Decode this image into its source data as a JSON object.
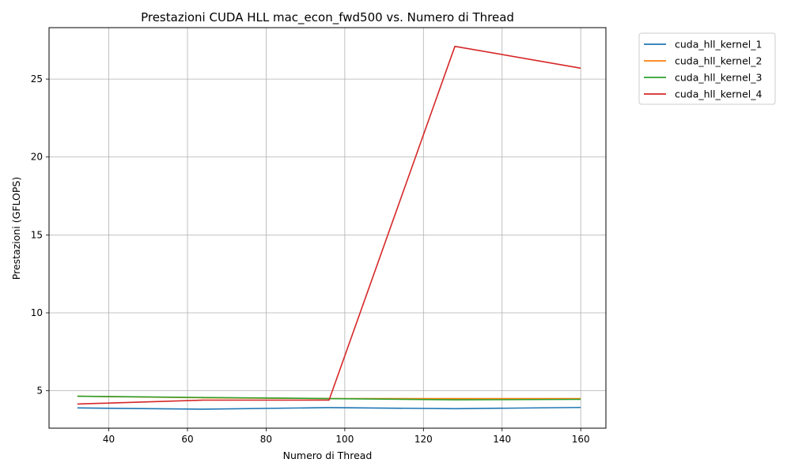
{
  "chart_data": {
    "type": "line",
    "title": "Prestazioni CUDA HLL mac_econ_fwd500 vs. Numero di Thread",
    "xlabel": "Numero di Thread",
    "ylabel": "Prestazioni (GFLOPS)",
    "x": [
      32,
      64,
      96,
      128,
      160
    ],
    "xlim": [
      24.8,
      166.4
    ],
    "ylim": [
      2.6,
      28.3
    ],
    "xticks": [
      40,
      60,
      80,
      100,
      120,
      140,
      160
    ],
    "yticks": [
      5,
      10,
      15,
      20,
      25
    ],
    "grid": true,
    "legend": "outside-top-right",
    "series": [
      {
        "name": "cuda_hll_kernel_1",
        "color": "#1f77b4",
        "values": [
          3.9,
          3.82,
          3.92,
          3.85,
          3.93
        ]
      },
      {
        "name": "cuda_hll_kernel_2",
        "color": "#ff7f0e",
        "values": [
          4.65,
          4.55,
          4.5,
          4.5,
          4.5
        ]
      },
      {
        "name": "cuda_hll_kernel_3",
        "color": "#2ca02c",
        "values": [
          4.65,
          4.57,
          4.5,
          4.42,
          4.45
        ]
      },
      {
        "name": "cuda_hll_kernel_4",
        "color": "#d62728",
        "values": [
          4.15,
          4.4,
          4.4,
          27.1,
          25.7
        ]
      }
    ]
  }
}
